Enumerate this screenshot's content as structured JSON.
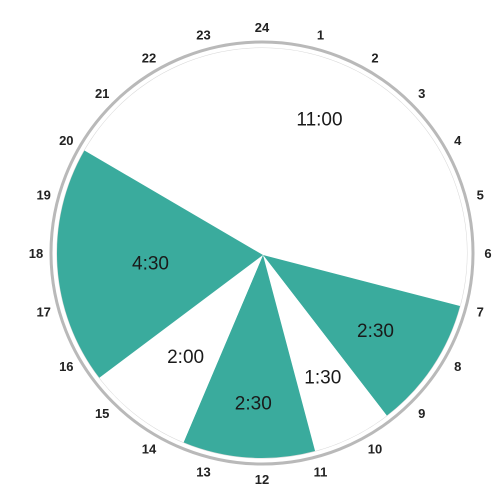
{
  "chart_data": {
    "type": "pie",
    "hour_labels": [
      "24",
      "1",
      "2",
      "3",
      "4",
      "5",
      "6",
      "7",
      "8",
      "9",
      "10",
      "11",
      "12",
      "13",
      "14",
      "15",
      "16",
      "17",
      "18",
      "19",
      "20",
      "21",
      "22",
      "23"
    ],
    "segments": [
      {
        "label": "11:00",
        "from_hour": 20,
        "to_hour": 7,
        "duration_hours": 11.0,
        "color": "#ffffff"
      },
      {
        "label": "2:30",
        "from_hour": 7,
        "to_hour": 9.5,
        "duration_hours": 2.5,
        "color": "#3aab9d"
      },
      {
        "label": "1:30",
        "from_hour": 9.5,
        "to_hour": 11,
        "duration_hours": 1.5,
        "color": "#ffffff"
      },
      {
        "label": "2:30",
        "from_hour": 11,
        "to_hour": 13.5,
        "duration_hours": 2.5,
        "color": "#3aab9d"
      },
      {
        "label": "2:00",
        "from_hour": 13.5,
        "to_hour": 15.5,
        "duration_hours": 2.0,
        "color": "#ffffff"
      },
      {
        "label": "4:30",
        "from_hour": 15.5,
        "to_hour": 20,
        "duration_hours": 4.5,
        "color": "#3aab9d"
      }
    ],
    "colors": {
      "accent": "#3aab9d",
      "rim": "#b9b9b9",
      "text": "#1a1a1a"
    }
  }
}
